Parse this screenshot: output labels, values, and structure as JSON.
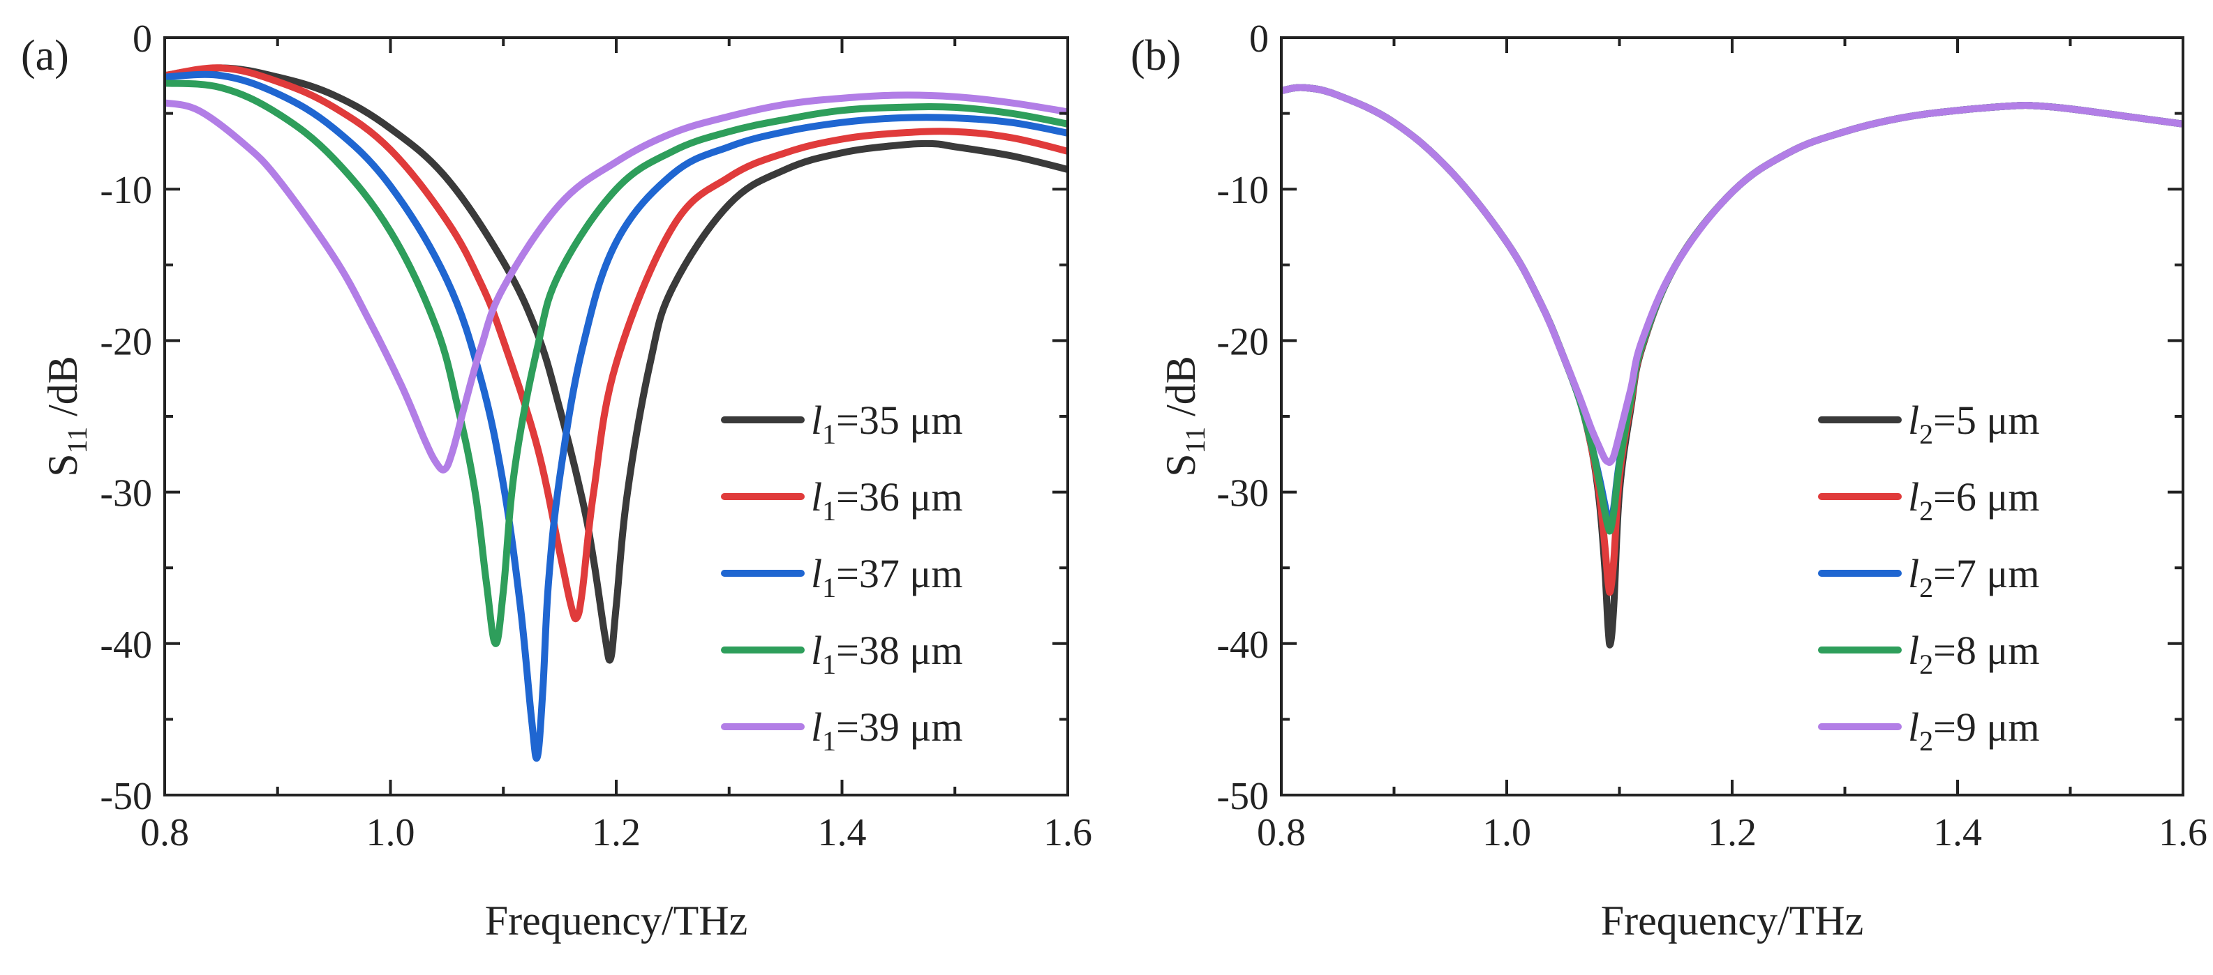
{
  "chart_data": [
    {
      "panel_label": "(a)",
      "type": "line",
      "xlabel": "Frequency/THz",
      "ylabel_main": "S",
      "ylabel_sub": "11",
      "ylabel_suffix": " /dB",
      "xlim": [
        0.8,
        1.6
      ],
      "ylim": [
        -50,
        0
      ],
      "xticks": [
        0.8,
        1.0,
        1.2,
        1.4,
        1.6
      ],
      "xtick_labels": [
        "0.8",
        "1.0",
        "1.2",
        "1.4",
        "1.6"
      ],
      "yticks": [
        0,
        -10,
        -20,
        -30,
        -40,
        -50
      ],
      "ytick_labels": [
        "0",
        "-10",
        "-20",
        "-30",
        "-40",
        "-50"
      ],
      "legend_position": "center-right",
      "series": [
        {
          "name": "l1=35 μm",
          "legend_var": "l",
          "legend_sub": "1",
          "legend_rest": "=35 μm",
          "color": "#3a3a3a",
          "x": [
            0.8,
            0.85,
            0.9,
            0.95,
            1.0,
            1.05,
            1.1,
            1.13,
            1.15,
            1.17,
            1.18,
            1.19,
            1.195,
            1.2,
            1.21,
            1.23,
            1.25,
            1.3,
            1.35,
            1.4,
            1.45,
            1.48,
            1.5,
            1.55,
            1.6
          ],
          "y": [
            -2.5,
            -2.0,
            -2.6,
            -3.8,
            -6.0,
            -9.3,
            -14.8,
            -19.5,
            -24.5,
            -30.5,
            -34.5,
            -39.5,
            -41.0,
            -37.5,
            -30.0,
            -21.5,
            -16.5,
            -11.0,
            -8.7,
            -7.6,
            -7.1,
            -7.0,
            -7.2,
            -7.8,
            -8.7
          ]
        },
        {
          "name": "l1=36 μm",
          "legend_var": "l",
          "legend_sub": "1",
          "legend_rest": "=36 μm",
          "color": "#e03b3b",
          "x": [
            0.8,
            0.85,
            0.9,
            0.95,
            1.0,
            1.05,
            1.08,
            1.1,
            1.13,
            1.15,
            1.16,
            1.165,
            1.17,
            1.18,
            1.2,
            1.25,
            1.3,
            1.35,
            1.4,
            1.45,
            1.5,
            1.55,
            1.6
          ],
          "y": [
            -2.5,
            -2.0,
            -2.9,
            -4.6,
            -7.4,
            -12.1,
            -16.2,
            -20.0,
            -27.0,
            -34.0,
            -37.5,
            -38.3,
            -36.5,
            -30.0,
            -21.5,
            -12.5,
            -9.2,
            -7.6,
            -6.7,
            -6.3,
            -6.2,
            -6.6,
            -7.5
          ]
        },
        {
          "name": "l1=37 μm",
          "legend_var": "l",
          "legend_sub": "1",
          "legend_rest": "=37 μm",
          "color": "#1f66d1",
          "x": [
            0.8,
            0.85,
            0.9,
            0.95,
            1.0,
            1.05,
            1.08,
            1.1,
            1.115,
            1.125,
            1.13,
            1.135,
            1.14,
            1.15,
            1.17,
            1.2,
            1.25,
            1.3,
            1.35,
            1.4,
            1.45,
            1.5,
            1.55,
            1.6
          ],
          "y": [
            -2.6,
            -2.5,
            -3.7,
            -6.0,
            -9.8,
            -16.0,
            -22.5,
            -29.5,
            -37.5,
            -45.0,
            -47.5,
            -43.0,
            -36.0,
            -29.0,
            -20.5,
            -13.5,
            -9.0,
            -7.2,
            -6.2,
            -5.6,
            -5.3,
            -5.3,
            -5.6,
            -6.3
          ]
        },
        {
          "name": "l1=38 μm",
          "legend_var": "l",
          "legend_sub": "1",
          "legend_rest": "=38 μm",
          "color": "#2e9e5b",
          "x": [
            0.8,
            0.85,
            0.9,
            0.95,
            1.0,
            1.04,
            1.06,
            1.075,
            1.085,
            1.093,
            1.1,
            1.11,
            1.13,
            1.15,
            1.2,
            1.25,
            1.3,
            1.35,
            1.4,
            1.45,
            1.5,
            1.55,
            1.6
          ],
          "y": [
            -3.0,
            -3.3,
            -5.0,
            -8.0,
            -12.8,
            -19.0,
            -24.5,
            -30.0,
            -36.0,
            -40.0,
            -36.5,
            -28.5,
            -20.5,
            -15.5,
            -10.0,
            -7.5,
            -6.2,
            -5.4,
            -4.8,
            -4.6,
            -4.6,
            -5.0,
            -5.7
          ]
        },
        {
          "name": "l1=39 μm",
          "legend_var": "l",
          "legend_sub": "1",
          "legend_rest": "=39 μm",
          "color": "#b27ee6",
          "x": [
            0.8,
            0.83,
            0.87,
            0.9,
            0.95,
            0.98,
            1.01,
            1.03,
            1.04,
            1.048,
            1.055,
            1.065,
            1.08,
            1.1,
            1.15,
            1.2,
            1.25,
            1.3,
            1.35,
            1.4,
            1.45,
            1.5,
            1.55,
            1.6
          ],
          "y": [
            -4.3,
            -4.8,
            -7.0,
            -9.3,
            -14.5,
            -18.5,
            -23.0,
            -26.5,
            -28.0,
            -28.5,
            -27.3,
            -24.5,
            -20.5,
            -16.5,
            -11.0,
            -8.2,
            -6.3,
            -5.2,
            -4.4,
            -4.0,
            -3.8,
            -3.9,
            -4.3,
            -4.9
          ]
        }
      ]
    },
    {
      "panel_label": "(b)",
      "type": "line",
      "xlabel": "Frequency/THz",
      "ylabel_main": "S",
      "ylabel_sub": "11",
      "ylabel_suffix": " /dB",
      "xlim": [
        0.8,
        1.6
      ],
      "ylim": [
        -50,
        0
      ],
      "xticks": [
        0.8,
        1.0,
        1.2,
        1.4,
        1.6
      ],
      "xtick_labels": [
        "0.8",
        "1.0",
        "1.2",
        "1.4",
        "1.6"
      ],
      "yticks": [
        0,
        -10,
        -20,
        -30,
        -40,
        -50
      ],
      "ytick_labels": [
        "0",
        "-10",
        "-20",
        "-30",
        "-40",
        "-50"
      ],
      "legend_position": "center-right",
      "series": [
        {
          "name": "l2=5 μm",
          "legend_var": "l",
          "legend_sub": "2",
          "legend_rest": "=5 μm",
          "color": "#3a3a3a",
          "x": [
            0.8,
            0.82,
            0.85,
            0.9,
            0.95,
            1.0,
            1.03,
            1.05,
            1.065,
            1.075,
            1.082,
            1.087,
            1.09,
            1.092,
            1.095,
            1.1,
            1.11,
            1.12,
            1.15,
            1.2,
            1.25,
            1.3,
            1.35,
            1.4,
            1.45,
            1.47,
            1.5,
            1.55,
            1.6
          ],
          "y": [
            -3.5,
            -3.3,
            -3.8,
            -5.6,
            -8.8,
            -13.5,
            -17.5,
            -21.0,
            -24.0,
            -27.0,
            -30.5,
            -35.0,
            -39.0,
            -40.0,
            -37.5,
            -30.0,
            -24.5,
            -20.5,
            -15.0,
            -10.2,
            -7.6,
            -6.2,
            -5.3,
            -4.8,
            -4.5,
            -4.5,
            -4.7,
            -5.2,
            -5.7
          ]
        },
        {
          "name": "l2=6 μm",
          "legend_var": "l",
          "legend_sub": "2",
          "legend_rest": "=6 μm",
          "color": "#e03b3b",
          "x": [
            0.8,
            0.82,
            0.85,
            0.9,
            0.95,
            1.0,
            1.03,
            1.05,
            1.065,
            1.075,
            1.082,
            1.087,
            1.09,
            1.092,
            1.095,
            1.1,
            1.11,
            1.12,
            1.15,
            1.2,
            1.25,
            1.3,
            1.35,
            1.4,
            1.45,
            1.47,
            1.5,
            1.55,
            1.6
          ],
          "y": [
            -3.5,
            -3.3,
            -3.8,
            -5.6,
            -8.8,
            -13.5,
            -17.5,
            -21.0,
            -24.0,
            -27.0,
            -30.0,
            -33.5,
            -36.0,
            -36.5,
            -34.5,
            -29.0,
            -24.2,
            -20.4,
            -15.0,
            -10.2,
            -7.6,
            -6.2,
            -5.3,
            -4.8,
            -4.5,
            -4.5,
            -4.7,
            -5.2,
            -5.7
          ]
        },
        {
          "name": "l2=7 μm",
          "legend_var": "l",
          "legend_sub": "2",
          "legend_rest": "=7 μm",
          "color": "#1f66d1",
          "x": [
            0.8,
            0.82,
            0.85,
            0.9,
            0.95,
            1.0,
            1.03,
            1.05,
            1.065,
            1.075,
            1.082,
            1.087,
            1.09,
            1.092,
            1.095,
            1.1,
            1.11,
            1.12,
            1.15,
            1.2,
            1.25,
            1.3,
            1.35,
            1.4,
            1.45,
            1.47,
            1.5,
            1.55,
            1.6
          ],
          "y": [
            -3.5,
            -3.3,
            -3.8,
            -5.6,
            -8.8,
            -13.5,
            -17.5,
            -21.0,
            -24.0,
            -26.8,
            -29.0,
            -30.8,
            -31.8,
            -32.0,
            -31.0,
            -28.0,
            -23.8,
            -20.3,
            -15.0,
            -10.2,
            -7.6,
            -6.2,
            -5.3,
            -4.8,
            -4.5,
            -4.5,
            -4.7,
            -5.2,
            -5.7
          ]
        },
        {
          "name": "l2=8 μm",
          "legend_var": "l",
          "legend_sub": "2",
          "legend_rest": "=8 μm",
          "color": "#2e9e5b",
          "x": [
            0.8,
            0.82,
            0.85,
            0.9,
            0.95,
            1.0,
            1.03,
            1.05,
            1.065,
            1.075,
            1.082,
            1.087,
            1.09,
            1.092,
            1.095,
            1.1,
            1.11,
            1.12,
            1.15,
            1.2,
            1.25,
            1.3,
            1.35,
            1.4,
            1.45,
            1.47,
            1.5,
            1.55,
            1.6
          ],
          "y": [
            -3.5,
            -3.3,
            -3.8,
            -5.6,
            -8.8,
            -13.5,
            -17.5,
            -21.0,
            -24.0,
            -26.8,
            -29.3,
            -31.3,
            -32.3,
            -32.5,
            -31.3,
            -28.2,
            -23.9,
            -20.3,
            -15.0,
            -10.2,
            -7.6,
            -6.2,
            -5.3,
            -4.8,
            -4.5,
            -4.5,
            -4.7,
            -5.2,
            -5.7
          ]
        },
        {
          "name": "l2=9 μm",
          "legend_var": "l",
          "legend_sub": "2",
          "legend_rest": "=9 μm",
          "color": "#b27ee6",
          "x": [
            0.8,
            0.82,
            0.85,
            0.9,
            0.95,
            1.0,
            1.03,
            1.05,
            1.065,
            1.075,
            1.082,
            1.087,
            1.09,
            1.092,
            1.095,
            1.1,
            1.11,
            1.12,
            1.15,
            1.2,
            1.25,
            1.3,
            1.35,
            1.4,
            1.45,
            1.47,
            1.5,
            1.55,
            1.6
          ],
          "y": [
            -3.5,
            -3.3,
            -3.8,
            -5.6,
            -8.8,
            -13.5,
            -17.5,
            -21.0,
            -23.8,
            -25.8,
            -27.0,
            -27.8,
            -28.0,
            -28.0,
            -27.6,
            -26.2,
            -23.2,
            -20.0,
            -15.0,
            -10.2,
            -7.6,
            -6.2,
            -5.3,
            -4.8,
            -4.5,
            -4.5,
            -4.7,
            -5.2,
            -5.7
          ]
        }
      ]
    }
  ]
}
